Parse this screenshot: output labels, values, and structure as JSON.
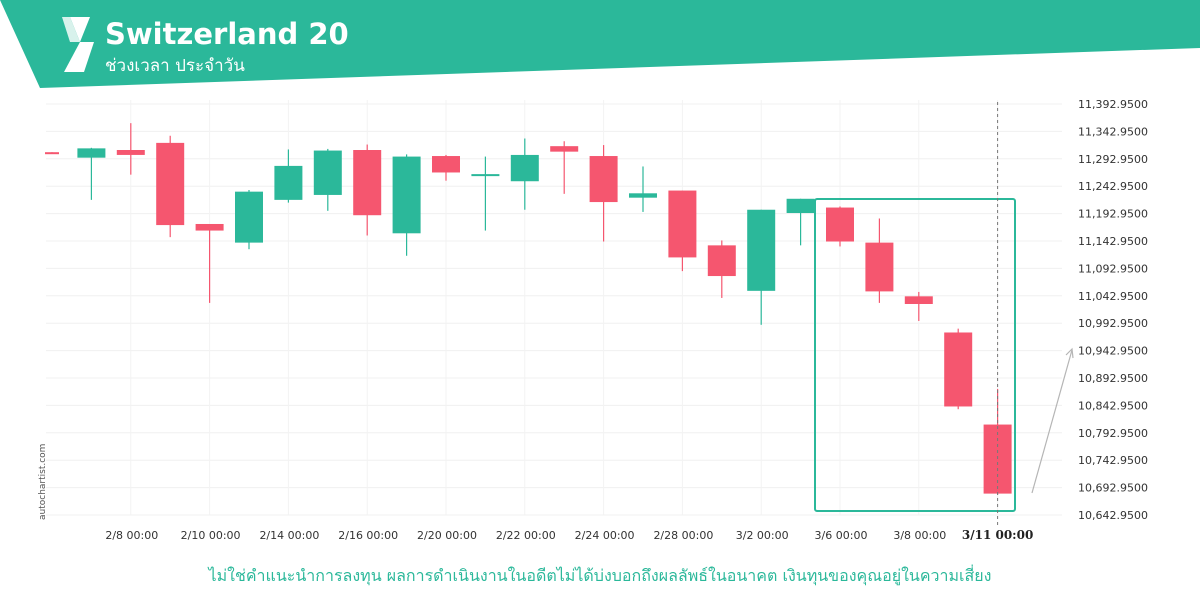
{
  "header": {
    "title": "Switzerland 20",
    "subtitle": "ช่วงเวลา ประจำวัน",
    "bg_color": "#2bb89a"
  },
  "watermark": "autochartist.com",
  "disclaimer": "ไม่ใช่คำแนะนำการลงทุน ผลการดำเนินงานในอดีตไม่ได้บ่งบอกถึงผลลัพธ์ในอนาคต เงินทุนของคุณอยู่ในความเสี่ยง",
  "chart_data": {
    "type": "candlestick",
    "up_color": "#2bb89a",
    "down_color": "#f5566f",
    "y_ticks": [
      "11,392.9500",
      "11,342.9500",
      "11,292.9500",
      "11,242.9500",
      "11,192.9500",
      "11,142.9500",
      "11,092.9500",
      "11,042.9500",
      "10,992.9500",
      "10,942.9500",
      "10,892.9500",
      "10,842.9500",
      "10,792.9500",
      "10,742.9500",
      "10,692.9500",
      "10,642.9500"
    ],
    "ylim": [
      10630,
      11410
    ],
    "x_ticks": [
      {
        "label": "2/8 00:00",
        "i": 2
      },
      {
        "label": "2/10 00:00",
        "i": 4
      },
      {
        "label": "2/14 00:00",
        "i": 6
      },
      {
        "label": "2/16 00:00",
        "i": 8
      },
      {
        "label": "2/20 00:00",
        "i": 10
      },
      {
        "label": "2/22 00:00",
        "i": 12
      },
      {
        "label": "2/24 00:00",
        "i": 14
      },
      {
        "label": "2/28 00:00",
        "i": 16
      },
      {
        "label": "3/2 00:00",
        "i": 18
      },
      {
        "label": "3/6 00:00",
        "i": 20
      },
      {
        "label": "3/8 00:00",
        "i": 22
      },
      {
        "label": "3/11 00:00",
        "i": 24
      }
    ],
    "candles": [
      {
        "o": 11305,
        "h": 11305,
        "l": 11303,
        "c": 11303
      },
      {
        "o": 11295,
        "h": 11313,
        "l": 11218,
        "c": 11312
      },
      {
        "o": 11309,
        "h": 11358,
        "l": 11264,
        "c": 11300
      },
      {
        "o": 11322,
        "h": 11335,
        "l": 11150,
        "c": 11172
      },
      {
        "o": 11174,
        "h": 11174,
        "l": 11030,
        "c": 11162
      },
      {
        "o": 11140,
        "h": 11236,
        "l": 11128,
        "c": 11233
      },
      {
        "o": 11218,
        "h": 11310,
        "l": 11213,
        "c": 11280
      },
      {
        "o": 11227,
        "h": 11311,
        "l": 11198,
        "c": 11308
      },
      {
        "o": 11309,
        "h": 11319,
        "l": 11153,
        "c": 11190
      },
      {
        "o": 11157,
        "h": 11301,
        "l": 11116,
        "c": 11297
      },
      {
        "o": 11298,
        "h": 11300,
        "l": 11253,
        "c": 11268
      },
      {
        "o": 11265,
        "h": 11297,
        "l": 11162,
        "c": 11265
      },
      {
        "o": 11252,
        "h": 11330,
        "l": 11200,
        "c": 11300
      },
      {
        "o": 11316,
        "h": 11325,
        "l": 11229,
        "c": 11306
      },
      {
        "o": 11298,
        "h": 11318,
        "l": 11142,
        "c": 11214
      },
      {
        "o": 11222,
        "h": 11279,
        "l": 11196,
        "c": 11230
      },
      {
        "o": 11235,
        "h": 11235,
        "l": 11088,
        "c": 11113
      },
      {
        "o": 11135,
        "h": 11144,
        "l": 11039,
        "c": 11079
      },
      {
        "o": 11052,
        "h": 11200,
        "l": 10990,
        "c": 11200
      },
      {
        "o": 11194,
        "h": 11220,
        "l": 11135,
        "c": 11220
      },
      {
        "o": 11204,
        "h": 11206,
        "l": 11133,
        "c": 11142
      },
      {
        "o": 11140,
        "h": 11184,
        "l": 11030,
        "c": 11051
      },
      {
        "o": 11042,
        "h": 11050,
        "l": 10997,
        "c": 11028
      },
      {
        "o": 10976,
        "h": 10983,
        "l": 10836,
        "c": 10841
      },
      {
        "o": 10808,
        "h": 10873,
        "l": 10680,
        "c": 10682
      }
    ]
  }
}
